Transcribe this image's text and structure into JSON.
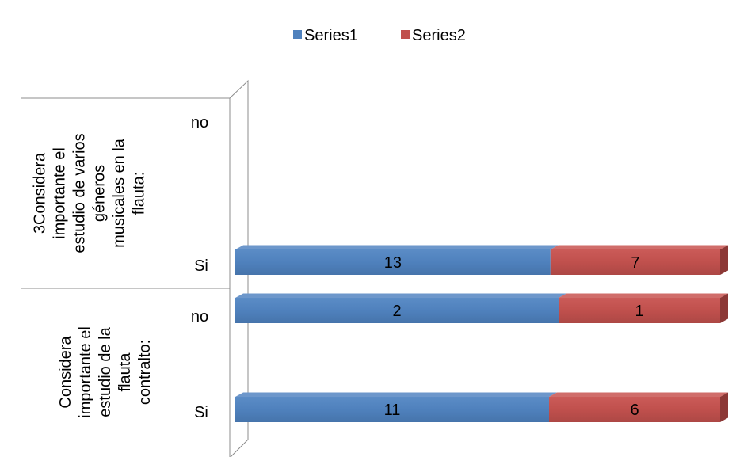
{
  "chart_data": {
    "type": "bar",
    "orientation": "horizontal",
    "stacked": true,
    "three_d": true,
    "legend": {
      "placement": "top",
      "entries": [
        {
          "name": "Series1",
          "color": "#4F81BD"
        },
        {
          "name": "Series2",
          "color": "#C0504D"
        }
      ]
    },
    "groups": [
      {
        "label": "Considera importante el estudio de la flauta contralto:",
        "label_lines": [
          "Considera",
          "importante el",
          "estudio de la",
          "flauta",
          "contralto:"
        ],
        "categories": [
          "Si",
          "no"
        ]
      },
      {
        "label": "3Considera importante el estudio de varios géneros musicales en la flauta:",
        "label_lines": [
          "3Considera",
          "importante el",
          "estudio de varios",
          "géneros",
          "musicales en la",
          "flauta:"
        ],
        "categories": [
          "Si",
          "no"
        ]
      }
    ],
    "series": [
      {
        "name": "Series1",
        "color": "#4F81BD",
        "values": [
          11,
          2,
          13,
          null
        ]
      },
      {
        "name": "Series2",
        "color": "#C0504D",
        "values": [
          6,
          1,
          7,
          null
        ]
      }
    ],
    "grid": false
  }
}
